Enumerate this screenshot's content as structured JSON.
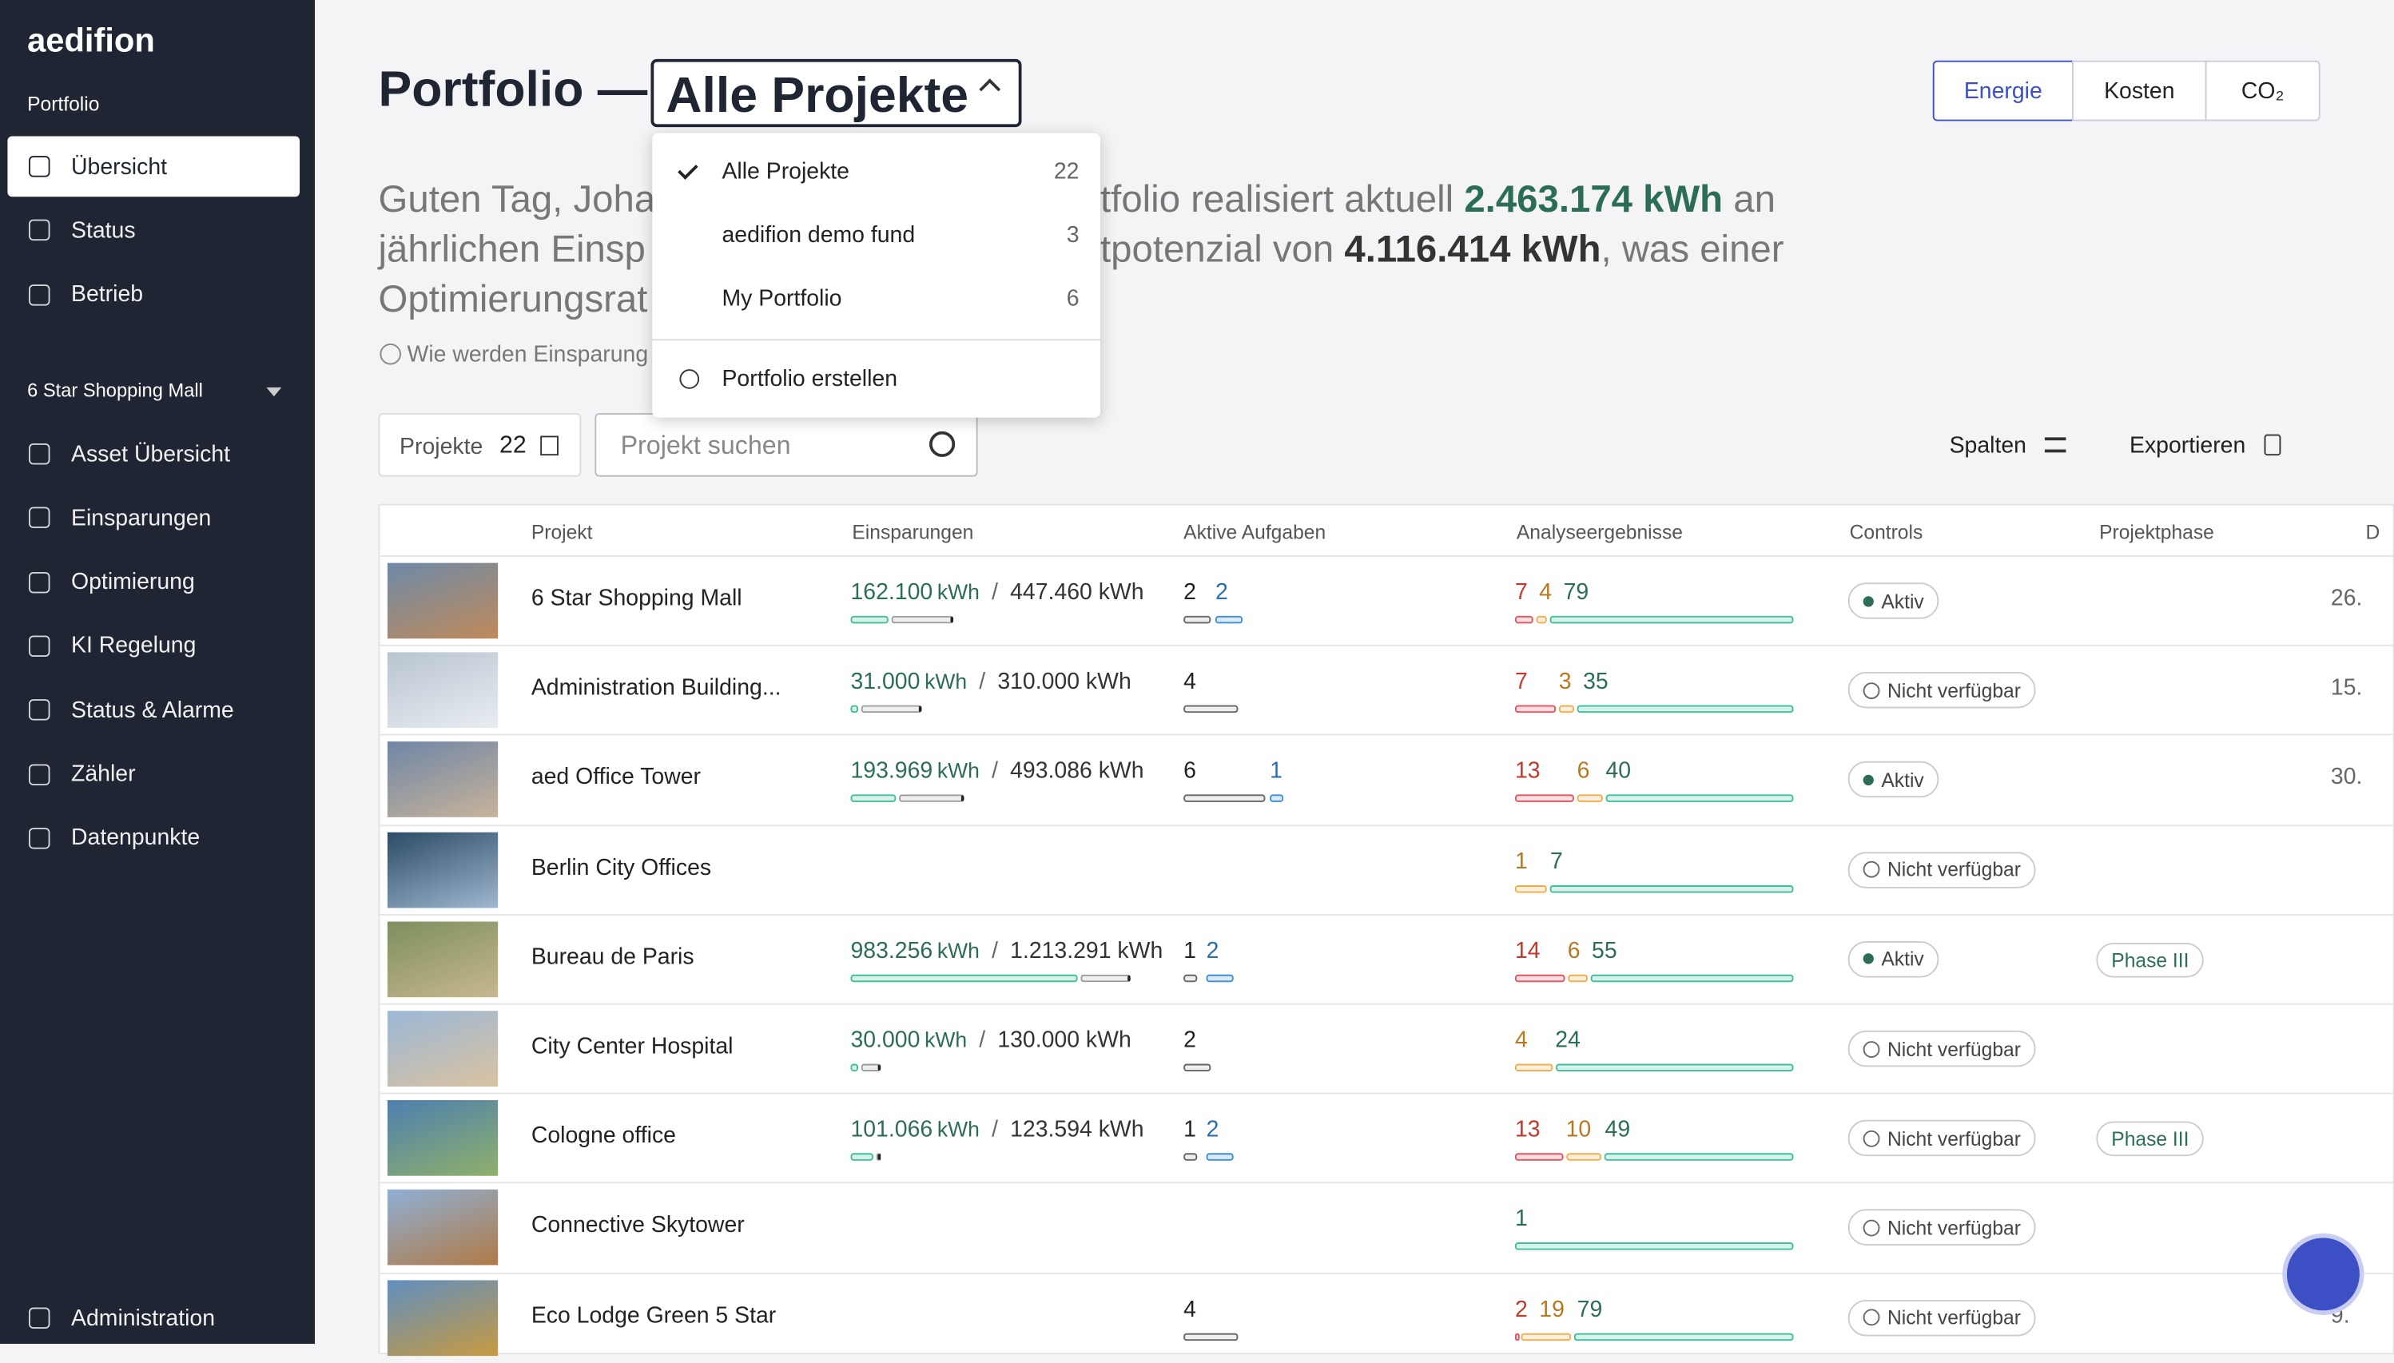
{
  "sidebar": {
    "brand": "aedifion",
    "section_label": "Portfolio",
    "portfolio_items": [
      "Übersicht",
      "Status",
      "Betrieb"
    ],
    "project_selector": "6 Star Shopping Mall",
    "project_items": [
      "Asset Übersicht",
      "Einsparungen",
      "Optimierung",
      "KI Regelung",
      "Status & Alarme",
      "Zähler",
      "Datenpunkte"
    ],
    "footer_item": "Administration"
  },
  "header": {
    "title": "Portfolio —",
    "selector": "Alle Projekte",
    "tabs": [
      "Energie",
      "Kosten",
      "CO₂"
    ]
  },
  "greeting": {
    "line1_left": "Guten Tag, Joha",
    "line1_right": "tfolio realisiert aktuell ",
    "line1_value": "2.463.174 kWh",
    "line1_end": " an",
    "line2_left": "jährlichen Einsp",
    "line2_right": "tpotenzial von ",
    "line2_value": "4.116.414 kWh",
    "line2_end": ", was einer",
    "line3_left": "Optimierungsrat",
    "help": "Wie werden Einsparung"
  },
  "dropdown": {
    "items": [
      {
        "label": "Alle Projekte",
        "count": 22
      },
      {
        "label": "aedifion demo fund",
        "count": 3
      },
      {
        "label": "My Portfolio",
        "count": 6
      }
    ],
    "create": "Portfolio erstellen"
  },
  "toolbar": {
    "projects_label": "Projekte",
    "projects_count": 22,
    "search_placeholder": "Projekt suchen",
    "columns": "Spalten",
    "export": "Exportieren"
  },
  "table": {
    "headers": [
      "Projekt",
      "Einsparungen",
      "Aktive Aufgaben",
      "Analyseergebnisse",
      "Controls",
      "Projektphase",
      "D"
    ],
    "rows": [
      {
        "name": "6 Star Shopping Mall",
        "savings": {
          "value": 162100,
          "label": "162.100",
          "unit": "kWh",
          "potential": 447460,
          "potential_label": "447.460 kWh"
        },
        "tasks": {
          "open": 2,
          "blue": 2
        },
        "analysis": {
          "red": 7,
          "orange": 4,
          "green": 79
        },
        "control": "Aktiv",
        "phase": null,
        "date": "26."
      },
      {
        "name": "Administration Building...",
        "savings": {
          "value": 31000,
          "label": "31.000",
          "unit": "kWh",
          "potential": 310000,
          "potential_label": "310.000 kWh"
        },
        "tasks": {
          "open": 4,
          "blue": null
        },
        "analysis": {
          "red": 7,
          "orange": 3,
          "green": 35
        },
        "control": "Nicht verfügbar",
        "phase": null,
        "date": "15."
      },
      {
        "name": "aed Office Tower",
        "savings": {
          "value": 193969,
          "label": "193.969",
          "unit": "kWh",
          "potential": 493086,
          "potential_label": "493.086 kWh"
        },
        "tasks": {
          "open": 6,
          "blue": 1
        },
        "analysis": {
          "red": 13,
          "orange": 6,
          "green": 40
        },
        "control": "Aktiv",
        "phase": null,
        "date": "30."
      },
      {
        "name": "Berlin City Offices",
        "savings": null,
        "tasks": null,
        "analysis": {
          "red": null,
          "orange": 1,
          "green": 7
        },
        "control": "Nicht verfügbar",
        "phase": null,
        "date": null
      },
      {
        "name": "Bureau de Paris",
        "savings": {
          "value": 983256,
          "label": "983.256",
          "unit": "kWh",
          "potential": 1213291,
          "potential_label": "1.213.291 kWh"
        },
        "tasks": {
          "open": 1,
          "blue": 2
        },
        "analysis": {
          "red": 14,
          "orange": 6,
          "green": 55
        },
        "control": "Aktiv",
        "phase": "Phase III",
        "date": null
      },
      {
        "name": "City Center Hospital",
        "savings": {
          "value": 30000,
          "label": "30.000",
          "unit": "kWh",
          "potential": 130000,
          "potential_label": "130.000 kWh"
        },
        "tasks": {
          "open": 2,
          "blue": null
        },
        "analysis": {
          "red": null,
          "orange": 4,
          "green": 24
        },
        "control": "Nicht verfügbar",
        "phase": null,
        "date": null
      },
      {
        "name": "Cologne office",
        "savings": {
          "value": 101066,
          "label": "101.066",
          "unit": "kWh",
          "potential": 123594,
          "potential_label": "123.594 kWh"
        },
        "tasks": {
          "open": 1,
          "blue": 2
        },
        "analysis": {
          "red": 13,
          "orange": 10,
          "green": 49
        },
        "control": "Nicht verfügbar",
        "phase": "Phase III",
        "date": null
      },
      {
        "name": "Connective Skytower",
        "savings": null,
        "tasks": null,
        "analysis": {
          "red": null,
          "orange": null,
          "green": 1
        },
        "control": "Nicht verfügbar",
        "phase": null,
        "date": null
      },
      {
        "name": "Eco Lodge Green 5 Star",
        "savings": null,
        "tasks": {
          "open": 4,
          "blue": null
        },
        "analysis": {
          "red": 2,
          "orange": 19,
          "green": 79
        },
        "control": "Nicht verfügbar",
        "phase": null,
        "date": "9."
      }
    ]
  }
}
